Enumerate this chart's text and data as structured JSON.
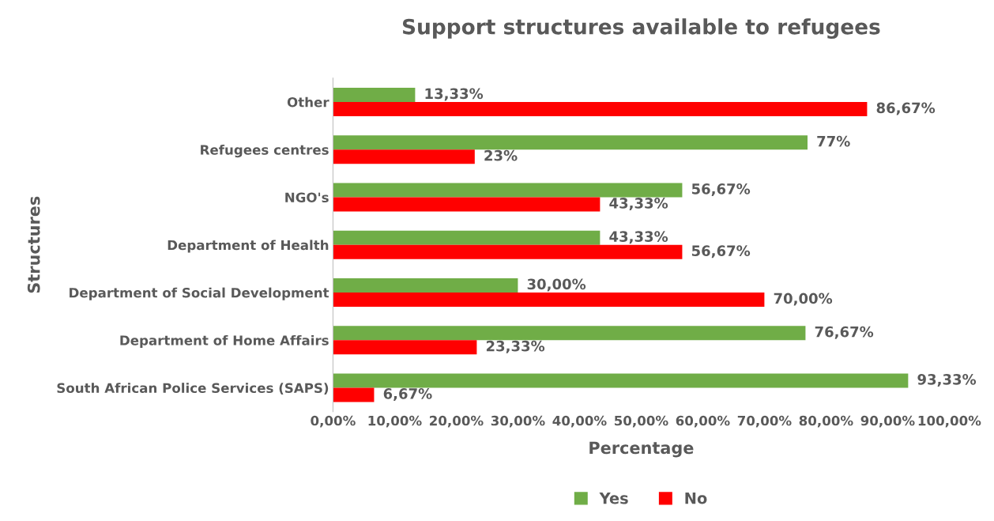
{
  "chart_data": {
    "type": "bar",
    "orientation": "horizontal",
    "title": "Support structures available to refugees",
    "xlabel": "Percentage",
    "ylabel": "Structures",
    "categories": [
      "Other",
      "Refugees centres",
      "NGO's",
      "Department of Health",
      "Department of Social Development",
      "Department of Home Affairs",
      "South African Police Services (SAPS)"
    ],
    "series": [
      {
        "name": "Yes",
        "color": "#70ad47",
        "values": [
          13.33,
          77,
          56.67,
          43.33,
          30.0,
          76.67,
          93.33
        ],
        "value_labels": [
          "13,33%",
          "77%",
          "56,67%",
          "43,33%",
          "30,00%",
          "76,67%",
          "93,33%"
        ]
      },
      {
        "name": "No",
        "color": "#ff0000",
        "values": [
          86.67,
          23,
          43.33,
          56.67,
          70.0,
          23.33,
          6.67
        ],
        "value_labels": [
          "86,67%",
          "23%",
          "43,33%",
          "56,67%",
          "70,00%",
          "23,33%",
          "6,67%"
        ]
      }
    ],
    "xlim": [
      0,
      100
    ],
    "xticks": [
      {
        "value": 0,
        "label": "0,00%"
      },
      {
        "value": 10,
        "label": "10,00%"
      },
      {
        "value": 20,
        "label": "20,00%"
      },
      {
        "value": 30,
        "label": "30,00%"
      },
      {
        "value": 40,
        "label": "40,00%"
      },
      {
        "value": 50,
        "label": "50,00%"
      },
      {
        "value": 60,
        "label": "60,00%"
      },
      {
        "value": 70,
        "label": "70,00%"
      },
      {
        "value": 80,
        "label": "80,00%"
      },
      {
        "value": 90,
        "label": "90,00%"
      },
      {
        "value": 100,
        "label": "100,00%"
      }
    ],
    "legend": "bottom",
    "grid": false
  }
}
